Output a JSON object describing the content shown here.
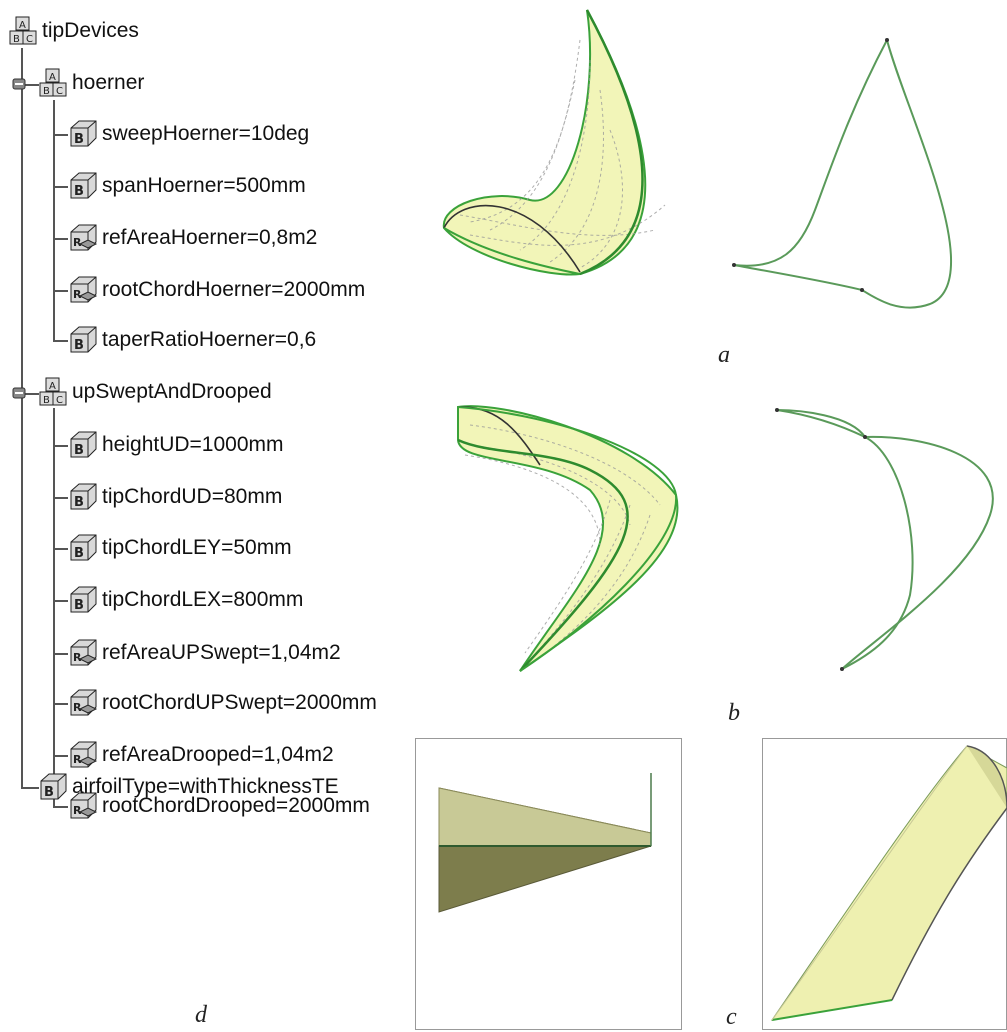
{
  "tree": {
    "root": {
      "label": "tipDevices"
    },
    "hoerner": {
      "label": "hoerner",
      "params": [
        {
          "label": "sweepHoerner=10deg",
          "icon": "parameter-icon"
        },
        {
          "label": "spanHoerner=500mm",
          "icon": "parameter-icon"
        },
        {
          "label": "refAreaHoerner=0,8m2",
          "icon": "formula-parameter-icon"
        },
        {
          "label": "rootChordHoerner=2000mm",
          "icon": "formula-parameter-icon"
        },
        {
          "label": "taperRatioHoerner=0,6",
          "icon": "parameter-icon"
        }
      ]
    },
    "upswept": {
      "label": "upSweptAndDrooped",
      "params": [
        {
          "label": "heightUD=1000mm",
          "icon": "parameter-icon"
        },
        {
          "label": "tipChordUD=80mm",
          "icon": "parameter-icon"
        },
        {
          "label": "tipChordLEY=50mm",
          "icon": "parameter-icon"
        },
        {
          "label": "tipChordLEX=800mm",
          "icon": "parameter-icon"
        },
        {
          "label": "refAreaUPSwept=1,04m2",
          "icon": "formula-parameter-icon"
        },
        {
          "label": "rootChordUPSwept=2000mm",
          "icon": "formula-parameter-icon"
        },
        {
          "label": "refAreaDrooped=1,04m2",
          "icon": "formula-parameter-icon"
        },
        {
          "label": "rootChordDrooped=2000mm",
          "icon": "formula-parameter-icon"
        }
      ]
    },
    "airfoil": {
      "label": "airfoilType=withThicknessTE",
      "icon": "parameter-icon"
    }
  },
  "captions": {
    "a": "a",
    "b": "b",
    "c": "c",
    "d": "d"
  },
  "colors": {
    "surface_fill": "#f2f5b8",
    "edge_green": "#3aa23a",
    "curve_green": "#5a9a5a",
    "solid_light": "#c8c996",
    "solid_dark": "#7d7d4c",
    "tree_line": "#555555"
  }
}
